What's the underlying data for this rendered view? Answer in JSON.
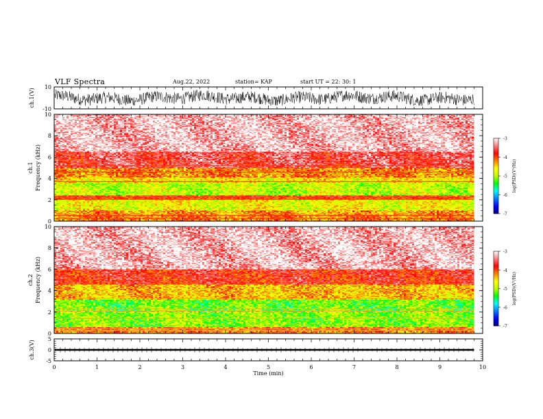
{
  "header": {
    "title": "VLF Spectra",
    "date": "Aug.22, 2022",
    "station": "station= KAP",
    "start": "start UT =  22: 30: 1"
  },
  "chart_data": [
    {
      "type": "line",
      "panel": "ch1-waveform",
      "ylabel": "ch.1(V)",
      "xlim": [
        0,
        10
      ],
      "ylim": [
        -10,
        10
      ],
      "yticks": [
        "10",
        "-10"
      ],
      "x_extent_min": 9.8,
      "description_values": "dense waveform oscillating roughly between -7 and 8 V across the record",
      "envelope_min": -7,
      "envelope_max": 8
    },
    {
      "type": "heatmap",
      "panel": "ch1-spectrogram",
      "ylabel": "ch.1 Frequency (kHz)",
      "xlim": [
        0,
        10
      ],
      "ylim": [
        0,
        10
      ],
      "yticks": [
        "0",
        "2",
        "4",
        "6",
        "8",
        "10"
      ],
      "x_extent_min": 9.8,
      "colorbar": {
        "label": "log(PSD)(V²/Hz)",
        "min": -7,
        "max": -3,
        "ticks": [
          "-3",
          "-4",
          "-5",
          "-6",
          "-7"
        ]
      },
      "bands": [
        {
          "f_low": 0.0,
          "f_high": 0.5,
          "level": -4.2
        },
        {
          "f_low": 0.5,
          "f_high": 1.0,
          "level": -4.3
        },
        {
          "f_low": 1.0,
          "f_high": 2.0,
          "level": -4.7
        },
        {
          "f_low": 2.0,
          "f_high": 2.4,
          "level": -3.9
        },
        {
          "f_low": 2.4,
          "f_high": 3.6,
          "level": -4.9
        },
        {
          "f_low": 3.6,
          "f_high": 4.1,
          "level": -4.6
        },
        {
          "f_low": 4.1,
          "f_high": 5.0,
          "level": -4.2
        },
        {
          "f_low": 5.0,
          "f_high": 6.5,
          "level": -3.6
        },
        {
          "f_low": 6.5,
          "f_high": 10.0,
          "level": -3.2
        }
      ]
    },
    {
      "type": "heatmap",
      "panel": "ch2-spectrogram",
      "ylabel": "ch.2 Frequency (kHz)",
      "xlim": [
        0,
        10
      ],
      "ylim": [
        0,
        10
      ],
      "yticks": [
        "0",
        "2",
        "4",
        "6",
        "8",
        "10"
      ],
      "x_extent_min": 9.8,
      "colorbar": {
        "label": "log(PSD)(V²/Hz)",
        "min": -7,
        "max": -3,
        "ticks": [
          "-3",
          "-4",
          "-5",
          "-6",
          "-7"
        ]
      },
      "bands": [
        {
          "f_low": 0.0,
          "f_high": 0.6,
          "level": -4.2
        },
        {
          "f_low": 0.6,
          "f_high": 2.0,
          "level": -5.1
        },
        {
          "f_low": 2.0,
          "f_high": 3.2,
          "level": -5.2
        },
        {
          "f_low": 3.2,
          "f_high": 4.6,
          "level": -4.4
        },
        {
          "f_low": 4.6,
          "f_high": 6.0,
          "level": -3.8
        },
        {
          "f_low": 6.0,
          "f_high": 10.0,
          "level": -3.2
        }
      ]
    },
    {
      "type": "line",
      "panel": "ch3-waveform",
      "ylabel": "ch.3(V)",
      "xlim": [
        0,
        10
      ],
      "ylim": [
        -5,
        5
      ],
      "yticks": [
        "5",
        "0",
        "-5"
      ],
      "x_extent_min": 9.8,
      "level": 0,
      "band_halfwidth": 0.4
    }
  ],
  "x_axis": {
    "label": "Time (min)",
    "ticks": [
      "0",
      "1",
      "2",
      "3",
      "4",
      "5",
      "6",
      "7",
      "8",
      "9",
      "10"
    ]
  },
  "colormap": [
    "#000080",
    "#0000ff",
    "#0080ff",
    "#00ffff",
    "#00ff00",
    "#c0ff00",
    "#ffff00",
    "#ff8000",
    "#ff0000",
    "#ff8080",
    "#ffffff"
  ]
}
